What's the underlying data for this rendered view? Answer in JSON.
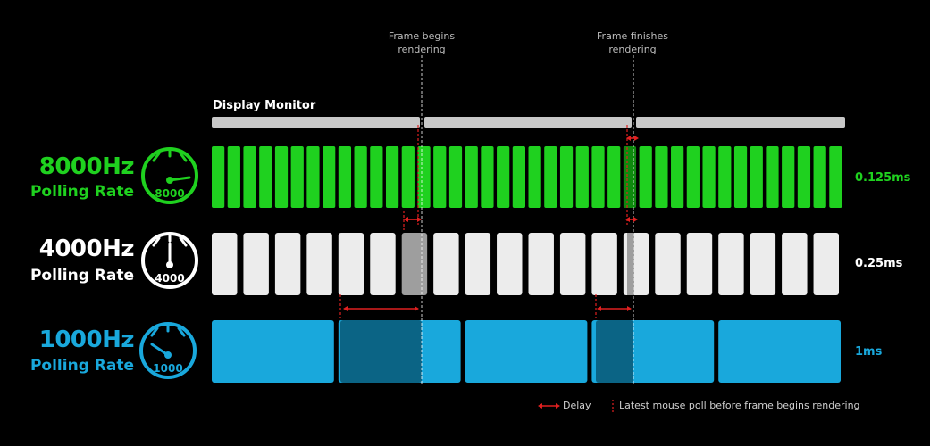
{
  "events": {
    "begin": "Frame begins\nrendering",
    "finish": "Frame finishes\nrendering"
  },
  "monitor": {
    "label": "Display Monitor"
  },
  "rows": [
    {
      "hz": "8000Hz",
      "sub": "Polling Rate",
      "gauge": "8000",
      "interval": "0.125ms",
      "color": "#1fd11f",
      "dark": "#0e8a0e"
    },
    {
      "hz": "4000Hz",
      "sub": "Polling Rate",
      "gauge": "4000",
      "interval": "0.25ms",
      "color": "#ffffff",
      "dark": "#9e9e9e"
    },
    {
      "hz": "1000Hz",
      "sub": "Polling Rate",
      "gauge": "1000",
      "interval": "1ms",
      "color": "#19a8dc",
      "dark": "#0b6485"
    }
  ],
  "legend": {
    "delay": "Delay",
    "poll": "Latest mouse poll before frame begins rendering"
  },
  "colors": {
    "delay_arrow": "#e02020",
    "monitor_bar": "#c8c8c8",
    "white_block": "#ececec"
  },
  "icons": [
    "gauge-icon",
    "delay-arrow-icon",
    "poll-line-icon"
  ]
}
